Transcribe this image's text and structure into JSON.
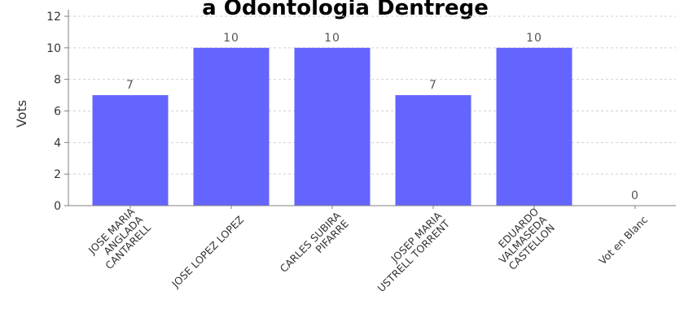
{
  "chart_data": {
    "type": "bar",
    "title": "a Odontologia Dentrege",
    "xlabel": "",
    "ylabel": "Vots",
    "ylim": [
      0,
      12
    ],
    "yticks": [
      0,
      2,
      4,
      6,
      8,
      10,
      12
    ],
    "grid": true,
    "categories": [
      [
        "JOSE MARIA",
        "ANGLADA",
        "CANTARELL"
      ],
      [
        "JOSE LOPEZ LOPEZ"
      ],
      [
        "CARLES SUBIRA",
        "PIFARRE"
      ],
      [
        "JOSEP MARIA",
        "USTRELL TORRENT"
      ],
      [
        "EDUARDO",
        "VALMASEDA",
        "CASTELLON"
      ],
      [
        "Vot en Blanc"
      ]
    ],
    "values": [
      7,
      10,
      10,
      7,
      10,
      0
    ],
    "colors": {
      "bar": "#6464ff",
      "grid": "#d0d0d0",
      "axis": "#808080"
    }
  }
}
